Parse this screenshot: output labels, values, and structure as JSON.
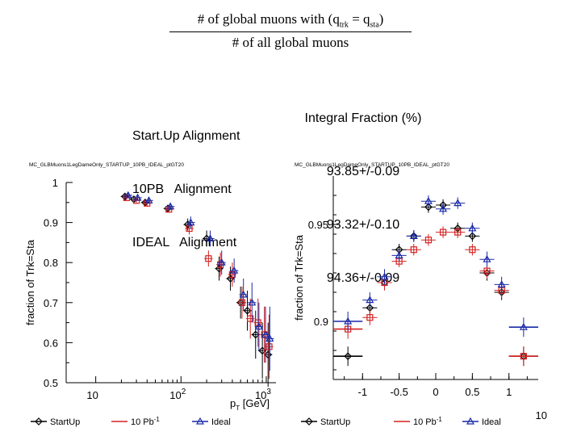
{
  "formula": {
    "num_prefix": "# of global muons with (q",
    "sub_trk": "trk",
    "num_mid": " = q",
    "sub_sta": "sta",
    "num_suffix": ")",
    "denominator": "# of all global muons"
  },
  "alignments": [
    "Start.Up Alignment",
    "10PB   Alignment",
    "IDEAL   Alignment"
  ],
  "integral": {
    "header": "Integral Fraction (%)",
    "values": [
      "93.85+/-0.09",
      "93.32+/-0.10",
      "94.36+/-0.09"
    ]
  },
  "page_number": "10",
  "colors": {
    "startup": "#000000",
    "pb10": "#d42020",
    "ideal": "#1a2aa8"
  },
  "chart_data": [
    {
      "type": "scatter",
      "title": "MC_GLBMuons1LegDameOnly_STARTUP_10PB_IDEAL_ptGT20",
      "xlabel_main": "p",
      "xlabel_sub": "T",
      "xlabel_unit": " [GeV]",
      "ylabel": "fraction of Trk=Sta",
      "xscale": "log",
      "xlim": [
        4.5,
        1300
      ],
      "ylim": [
        0.5,
        1.0
      ],
      "yticks": [
        "0.5",
        "0.6",
        "0.7",
        "0.8",
        "0.9",
        "1"
      ],
      "xticks": [
        {
          "base": "10",
          "exp": ""
        },
        {
          "base": "10",
          "exp": "2"
        },
        {
          "base": "10",
          "exp": "3"
        }
      ],
      "legend": [
        "StartUp",
        "10 Pb",
        "Ideal"
      ],
      "legend_sup": "-1",
      "series": [
        {
          "name": "StartUp",
          "x": [
            22,
            28,
            38,
            70,
            120,
            200,
            280,
            380,
            500,
            600,
            750,
            900,
            1050
          ],
          "y": [
            0.965,
            0.958,
            0.95,
            0.935,
            0.895,
            0.86,
            0.785,
            0.76,
            0.7,
            0.68,
            0.62,
            0.58,
            0.57
          ],
          "err": [
            0.006,
            0.006,
            0.007,
            0.008,
            0.015,
            0.02,
            0.03,
            0.03,
            0.04,
            0.05,
            0.06,
            0.07,
            0.08
          ]
        },
        {
          "name": "10 Pb",
          "x": [
            23,
            30,
            40,
            72,
            125,
            210,
            290,
            400,
            520,
            650,
            800,
            950,
            1080
          ],
          "y": [
            0.962,
            0.955,
            0.948,
            0.933,
            0.885,
            0.81,
            0.795,
            0.77,
            0.7,
            0.66,
            0.65,
            0.62,
            0.59
          ],
          "err": [
            0.006,
            0.006,
            0.007,
            0.008,
            0.015,
            0.02,
            0.03,
            0.03,
            0.04,
            0.05,
            0.06,
            0.07,
            0.08
          ]
        },
        {
          "name": "Ideal",
          "x": [
            24,
            31,
            42,
            75,
            130,
            220,
            300,
            420,
            540,
            680,
            820,
            980,
            1100
          ],
          "y": [
            0.968,
            0.962,
            0.955,
            0.94,
            0.9,
            0.86,
            0.8,
            0.78,
            0.72,
            0.7,
            0.64,
            0.62,
            0.61
          ],
          "err": [
            0.006,
            0.006,
            0.007,
            0.008,
            0.015,
            0.02,
            0.03,
            0.03,
            0.04,
            0.05,
            0.06,
            0.07,
            0.08
          ]
        }
      ]
    },
    {
      "type": "scatter",
      "title": "MC_GLBMuons1LegDameOnly_STARTUP_10PB_IDEAL_ptGT20",
      "xlabel": "",
      "ylabel": "fraction of Trk=Sta",
      "xlim": [
        -1.4,
        1.4
      ],
      "ylim": [
        0.87,
        0.975
      ],
      "yticks_labeled": [
        0.9,
        0.95
      ],
      "ytick_labels": [
        "0.9",
        "0.95"
      ],
      "xticks": [
        "-1",
        "-0.5",
        "0",
        "0.5",
        "1"
      ],
      "legend": [
        "StartUp",
        "10 Pb",
        "Ideal"
      ],
      "legend_sup": "-1",
      "series": [
        {
          "name": "StartUp",
          "x": [
            -1.2,
            -0.9,
            -0.7,
            -0.5,
            -0.3,
            -0.1,
            0.1,
            0.3,
            0.5,
            0.7,
            0.9,
            1.2
          ],
          "y": [
            0.882,
            0.907,
            0.92,
            0.937,
            0.944,
            0.959,
            0.96,
            0.948,
            0.944,
            0.925,
            0.915,
            0.882
          ],
          "xerr": [
            0.2,
            0.1,
            0.1,
            0.1,
            0.1,
            0.1,
            0.1,
            0.1,
            0.1,
            0.1,
            0.1,
            0.2
          ],
          "err": [
            0.005,
            0.004,
            0.004,
            0.003,
            0.003,
            0.003,
            0.003,
            0.003,
            0.003,
            0.004,
            0.004,
            0.005
          ]
        },
        {
          "name": "10 Pb",
          "x": [
            -1.2,
            -0.9,
            -0.7,
            -0.5,
            -0.3,
            -0.1,
            0.1,
            0.3,
            0.5,
            0.7,
            0.9,
            1.2
          ],
          "y": [
            0.896,
            0.902,
            0.92,
            0.931,
            0.937,
            0.942,
            0.946,
            0.946,
            0.937,
            0.926,
            0.916,
            0.882
          ],
          "xerr": [
            0.2,
            0.1,
            0.1,
            0.1,
            0.1,
            0.1,
            0.1,
            0.1,
            0.1,
            0.1,
            0.1,
            0.2
          ],
          "err": [
            0.005,
            0.004,
            0.004,
            0.003,
            0.003,
            0.003,
            0.003,
            0.003,
            0.003,
            0.004,
            0.004,
            0.005
          ]
        },
        {
          "name": "Ideal",
          "x": [
            -1.2,
            -0.9,
            -0.7,
            -0.5,
            -0.3,
            -0.1,
            0.1,
            0.3,
            0.5,
            0.7,
            0.9,
            1.2
          ],
          "y": [
            0.9,
            0.911,
            0.923,
            0.934,
            0.944,
            0.962,
            0.958,
            0.961,
            0.948,
            0.932,
            0.919,
            0.897
          ],
          "xerr": [
            0.2,
            0.1,
            0.1,
            0.1,
            0.1,
            0.1,
            0.1,
            0.1,
            0.1,
            0.1,
            0.1,
            0.2
          ],
          "err": [
            0.005,
            0.004,
            0.004,
            0.003,
            0.003,
            0.003,
            0.003,
            0.003,
            0.003,
            0.004,
            0.004,
            0.005
          ]
        }
      ]
    }
  ]
}
